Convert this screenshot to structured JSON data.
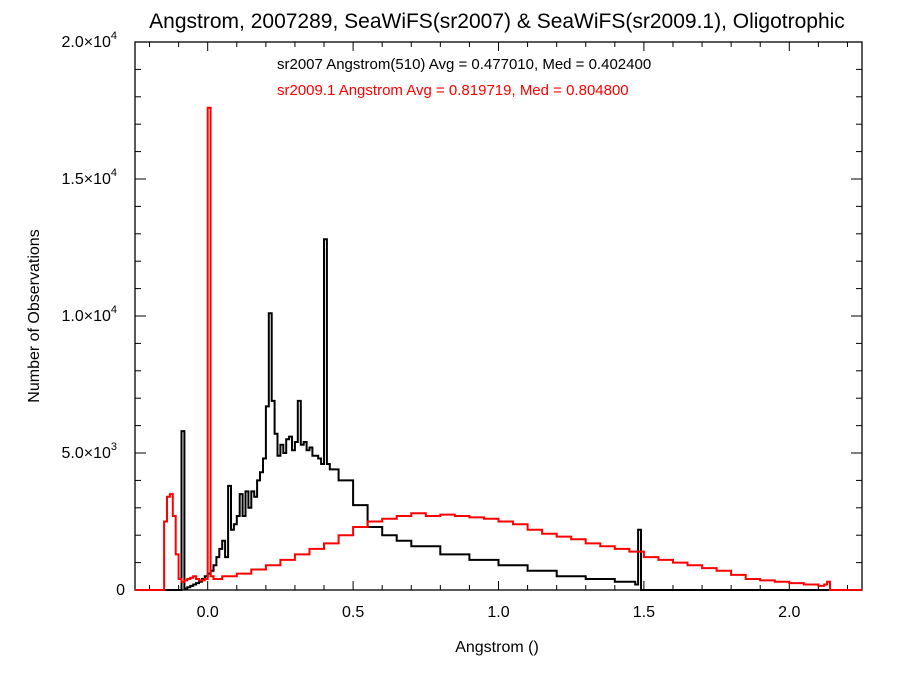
{
  "chart_data": {
    "type": "line",
    "title": "Angstrom, 2007289, SeaWiFS(sr2007) & SeaWiFS(sr2009.1), Oligotrophic",
    "xlabel": "Angstrom ()",
    "ylabel": "Number of Observations",
    "xlim": [
      -0.25,
      2.25
    ],
    "ylim": [
      0,
      20000
    ],
    "grid": false,
    "step_style": true,
    "x_ticks": [
      {
        "value": 0.0,
        "label": "0.0"
      },
      {
        "value": 0.5,
        "label": "0.5"
      },
      {
        "value": 1.0,
        "label": "1.0"
      },
      {
        "value": 1.5,
        "label": "1.5"
      },
      {
        "value": 2.0,
        "label": "2.0"
      }
    ],
    "y_ticks": [
      {
        "value": 0,
        "label": "0",
        "sup": ""
      },
      {
        "value": 5000,
        "label": "5.0×10",
        "sup": "3"
      },
      {
        "value": 10000,
        "label": "1.0×10",
        "sup": "4"
      },
      {
        "value": 15000,
        "label": "1.5×10",
        "sup": "4"
      },
      {
        "value": 20000,
        "label": "2.0×10",
        "sup": "4"
      }
    ],
    "annotations": [
      {
        "text": "sr2007 Angstrom(510) Avg = 0.477010, Med = 0.402400",
        "color": "#000000"
      },
      {
        "text": "sr2009.1 Angstrom Avg = 0.819719, Med = 0.804800",
        "color": "#ff0000"
      }
    ],
    "series": [
      {
        "color": "#000000",
        "x": [
          -0.25,
          -0.1,
          -0.09,
          -0.08,
          -0.07,
          -0.06,
          -0.05,
          -0.04,
          -0.03,
          -0.02,
          -0.01,
          0.0,
          0.01,
          0.02,
          0.03,
          0.04,
          0.05,
          0.06,
          0.07,
          0.08,
          0.09,
          0.1,
          0.11,
          0.12,
          0.13,
          0.14,
          0.15,
          0.16,
          0.17,
          0.18,
          0.19,
          0.2,
          0.21,
          0.22,
          0.23,
          0.24,
          0.25,
          0.26,
          0.27,
          0.28,
          0.29,
          0.3,
          0.31,
          0.32,
          0.33,
          0.34,
          0.35,
          0.36,
          0.37,
          0.38,
          0.39,
          0.4,
          0.41,
          0.42,
          0.45,
          0.5,
          0.55,
          0.6,
          0.65,
          0.7,
          0.8,
          0.9,
          1.0,
          1.1,
          1.2,
          1.3,
          1.4,
          1.47,
          1.48,
          1.49,
          1.5,
          2.25
        ],
        "y": [
          0,
          0,
          5800,
          50,
          100,
          150,
          200,
          250,
          300,
          400,
          500,
          600,
          700,
          900,
          1200,
          1500,
          1800,
          1200,
          3800,
          2200,
          2400,
          2700,
          3500,
          2700,
          3600,
          3000,
          3600,
          3400,
          4000,
          4300,
          4800,
          6700,
          10100,
          6900,
          5700,
          4900,
          5300,
          5000,
          5500,
          5600,
          5100,
          5400,
          6900,
          5300,
          5400,
          5100,
          5200,
          4900,
          4900,
          4800,
          4600,
          12800,
          4600,
          4400,
          4000,
          3100,
          2300,
          2000,
          1800,
          1600,
          1300,
          1100,
          900,
          700,
          500,
          400,
          300,
          200,
          2200,
          0,
          0,
          0
        ]
      },
      {
        "color": "#ff0000",
        "x": [
          -0.25,
          -0.16,
          -0.15,
          -0.14,
          -0.13,
          -0.12,
          -0.11,
          -0.1,
          -0.09,
          -0.08,
          -0.07,
          -0.06,
          -0.05,
          -0.04,
          -0.03,
          -0.02,
          -0.01,
          0.0,
          0.01,
          0.02,
          0.05,
          0.1,
          0.15,
          0.2,
          0.25,
          0.3,
          0.35,
          0.4,
          0.45,
          0.5,
          0.55,
          0.6,
          0.65,
          0.7,
          0.75,
          0.8,
          0.85,
          0.9,
          0.95,
          1.0,
          1.05,
          1.1,
          1.15,
          1.2,
          1.25,
          1.3,
          1.35,
          1.4,
          1.45,
          1.5,
          1.55,
          1.6,
          1.65,
          1.7,
          1.75,
          1.8,
          1.85,
          1.9,
          1.95,
          2.0,
          2.05,
          2.1,
          2.12,
          2.13,
          2.14,
          2.25
        ],
        "y": [
          0,
          0,
          2500,
          3400,
          3500,
          2700,
          1300,
          400,
          300,
          350,
          400,
          450,
          500,
          400,
          350,
          350,
          400,
          17600,
          500,
          400,
          500,
          600,
          750,
          900,
          1100,
          1300,
          1500,
          1700,
          2000,
          2300,
          2500,
          2600,
          2700,
          2800,
          2700,
          2750,
          2700,
          2650,
          2600,
          2500,
          2400,
          2200,
          2050,
          1950,
          1850,
          1700,
          1600,
          1500,
          1400,
          1200,
          1100,
          1000,
          900,
          800,
          700,
          550,
          400,
          350,
          300,
          250,
          200,
          150,
          200,
          300,
          0,
          0
        ]
      }
    ]
  }
}
